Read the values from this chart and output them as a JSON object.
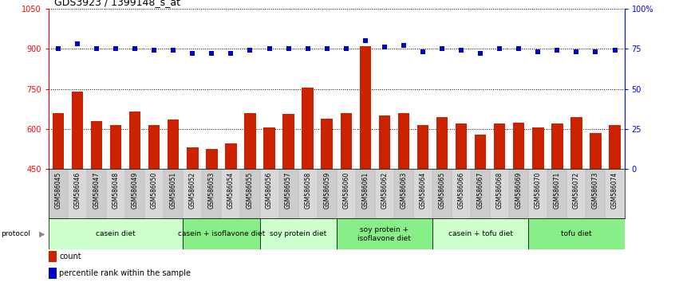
{
  "title": "GDS3923 / 1399148_s_at",
  "samples": [
    "GSM586045",
    "GSM586046",
    "GSM586047",
    "GSM586048",
    "GSM586049",
    "GSM586050",
    "GSM586051",
    "GSM586052",
    "GSM586053",
    "GSM586054",
    "GSM586055",
    "GSM586056",
    "GSM586057",
    "GSM586058",
    "GSM586059",
    "GSM586060",
    "GSM586061",
    "GSM586062",
    "GSM586063",
    "GSM586064",
    "GSM586065",
    "GSM586066",
    "GSM586067",
    "GSM586068",
    "GSM586069",
    "GSM586070",
    "GSM586071",
    "GSM586072",
    "GSM586073",
    "GSM586074"
  ],
  "counts": [
    660,
    740,
    630,
    615,
    665,
    615,
    635,
    530,
    525,
    545,
    660,
    605,
    655,
    755,
    640,
    660,
    910,
    650,
    660,
    615,
    645,
    620,
    580,
    620,
    625,
    605,
    620,
    645,
    585,
    615
  ],
  "percentile_ranks": [
    75,
    78,
    75,
    75,
    75,
    74,
    74,
    72,
    72,
    72,
    74,
    75,
    75,
    75,
    75,
    75,
    80,
    76,
    77,
    73,
    75,
    74,
    72,
    75,
    75,
    73,
    74,
    73,
    73,
    74
  ],
  "groups": [
    {
      "label": "casein diet",
      "start": 0,
      "end": 6,
      "color": "#ccffcc"
    },
    {
      "label": "casein + isoflavone diet",
      "start": 7,
      "end": 10,
      "color": "#88ee88"
    },
    {
      "label": "soy protein diet",
      "start": 11,
      "end": 14,
      "color": "#ccffcc"
    },
    {
      "label": "soy protein +\nisoflavone diet",
      "start": 15,
      "end": 19,
      "color": "#88ee88"
    },
    {
      "label": "casein + tofu diet",
      "start": 20,
      "end": 24,
      "color": "#ccffcc"
    },
    {
      "label": "tofu diet",
      "start": 25,
      "end": 29,
      "color": "#88ee88"
    }
  ],
  "bar_color": "#cc2200",
  "dot_color": "#0000cc",
  "left_ylim": [
    450,
    1050
  ],
  "left_yticks": [
    450,
    600,
    750,
    900,
    1050
  ],
  "right_ylim": [
    0,
    100
  ],
  "right_yticks": [
    0,
    25,
    50,
    75,
    100
  ],
  "right_yticklabels": [
    "0",
    "25",
    "50",
    "75",
    "100%"
  ],
  "title_fontsize": 9,
  "tick_fontsize": 7,
  "sample_fontsize": 5.5,
  "group_fontsize": 6.5,
  "legend_fontsize": 7
}
